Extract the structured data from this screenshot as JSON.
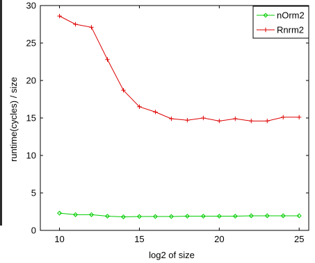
{
  "chart_data": {
    "type": "line",
    "title": "",
    "xlabel": "log2 of size",
    "ylabel": "runtime(cycles) / size",
    "xlim": [
      8.8,
      25.6
    ],
    "ylim": [
      0,
      30
    ],
    "xticks": [
      10,
      15,
      20,
      25
    ],
    "yticks": [
      0,
      5,
      10,
      15,
      20,
      25,
      30
    ],
    "grid": false,
    "legend_position": "top-right",
    "x": [
      10,
      11,
      12,
      13,
      14,
      15,
      16,
      17,
      18,
      19,
      20,
      21,
      22,
      23,
      24,
      25
    ],
    "series": [
      {
        "name": "nOrm2",
        "color": "#00cc00",
        "marker": "diamond",
        "values": [
          2.3,
          2.1,
          2.1,
          1.9,
          1.8,
          1.85,
          1.85,
          1.85,
          1.9,
          1.9,
          1.9,
          1.9,
          1.95,
          1.95,
          1.95,
          1.95
        ]
      },
      {
        "name": "Rnrm2",
        "color": "#dd0000",
        "marker": "plus",
        "values": [
          28.6,
          27.5,
          27.1,
          22.8,
          18.7,
          16.5,
          15.8,
          14.9,
          14.7,
          15.0,
          14.6,
          14.9,
          14.6,
          14.6,
          15.1,
          15.1
        ]
      }
    ]
  }
}
